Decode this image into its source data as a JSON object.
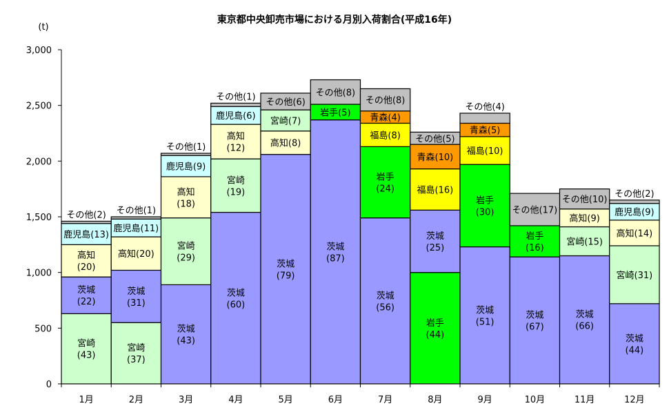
{
  "chart_data": {
    "type": "bar",
    "stacked": true,
    "title": "東京都中央卸売市場における月別入荷割合(平成16年)",
    "unit_label": "(t)",
    "ylim": [
      0,
      3000
    ],
    "yticks": [
      0,
      500,
      1000,
      1500,
      2000,
      2500,
      3000
    ],
    "ytick_labels": [
      "0",
      "500",
      "1,000",
      "1,500",
      "2,000",
      "2,500",
      "3,000"
    ],
    "grid": false,
    "categories": [
      "1月",
      "2月",
      "3月",
      "4月",
      "5月",
      "6月",
      "7月",
      "8月",
      "9月",
      "10月",
      "11月",
      "12月"
    ],
    "colors": {
      "宮崎": "#ccffcc",
      "茨城": "#9999ff",
      "高知": "#ffffcc",
      "鹿児島": "#ccffff",
      "岩手": "#00ff00",
      "福島": "#ffff00",
      "青森": "#ff9900",
      "その他": "#c0c0c0"
    },
    "bars": [
      {
        "month": "1月",
        "segments": [
          {
            "name": "宮崎",
            "value": 630,
            "label": "宮崎\n(43)"
          },
          {
            "name": "茨城",
            "value": 330,
            "label": "茨城\n(22)"
          },
          {
            "name": "高知",
            "value": 290,
            "label": "高知\n(20)"
          },
          {
            "name": "鹿児島",
            "value": 190,
            "label": "鹿児島(13)"
          },
          {
            "name": "その他",
            "value": 20,
            "label": "その他(2)",
            "label_outside": true
          }
        ]
      },
      {
        "month": "2月",
        "segments": [
          {
            "name": "宮崎",
            "value": 550,
            "label": "宮崎\n(37)"
          },
          {
            "name": "茨城",
            "value": 470,
            "label": "茨城\n(31)"
          },
          {
            "name": "高知",
            "value": 300,
            "label": "高知(20)"
          },
          {
            "name": "鹿児島",
            "value": 160,
            "label": "鹿児島(11)"
          },
          {
            "name": "その他",
            "value": 20,
            "label": "その他(1)",
            "label_outside": true
          }
        ]
      },
      {
        "month": "3月",
        "segments": [
          {
            "name": "茨城",
            "value": 890,
            "label": "茨城\n(43)"
          },
          {
            "name": "宮崎",
            "value": 600,
            "label": "宮崎\n(29)"
          },
          {
            "name": "高知",
            "value": 370,
            "label": "高知\n(18)"
          },
          {
            "name": "鹿児島",
            "value": 190,
            "label": "鹿児島(9)"
          },
          {
            "name": "その他",
            "value": 20,
            "label": "その他(1)",
            "label_outside": true
          }
        ]
      },
      {
        "month": "4月",
        "segments": [
          {
            "name": "茨城",
            "value": 1540,
            "label": "茨城\n(60)"
          },
          {
            "name": "宮崎",
            "value": 480,
            "label": "宮崎\n(19)"
          },
          {
            "name": "高知",
            "value": 310,
            "label": "高知\n(12)"
          },
          {
            "name": "鹿児島",
            "value": 160,
            "label": "鹿児島(6)"
          },
          {
            "name": "その他",
            "value": 30,
            "label": "その他(1)",
            "label_outside": true
          }
        ]
      },
      {
        "month": "5月",
        "segments": [
          {
            "name": "茨城",
            "value": 2060,
            "label": "茨城\n(79)"
          },
          {
            "name": "高知",
            "value": 210,
            "label": "高知(8)"
          },
          {
            "name": "宮崎",
            "value": 190,
            "label": "宮崎(7)"
          },
          {
            "name": "その他",
            "value": 150,
            "label": "その他(6)"
          }
        ]
      },
      {
        "month": "6月",
        "segments": [
          {
            "name": "茨城",
            "value": 2370,
            "label": "茨城\n(87)"
          },
          {
            "name": "岩手",
            "value": 140,
            "label": "岩手(5)"
          },
          {
            "name": "その他",
            "value": 220,
            "label": "その他(8)"
          }
        ]
      },
      {
        "month": "7月",
        "segments": [
          {
            "name": "茨城",
            "value": 1490,
            "label": "茨城\n(56)"
          },
          {
            "name": "岩手",
            "value": 640,
            "label": "岩手\n(24)"
          },
          {
            "name": "福島",
            "value": 210,
            "label": "福島(8)"
          },
          {
            "name": "青森",
            "value": 110,
            "label": "青森(4)"
          },
          {
            "name": "その他",
            "value": 200,
            "label": "その他(8)"
          }
        ]
      },
      {
        "month": "8月",
        "segments": [
          {
            "name": "岩手",
            "value": 1000,
            "label": "岩手\n(44)"
          },
          {
            "name": "茨城",
            "value": 560,
            "label": "茨城\n(25)"
          },
          {
            "name": "福島",
            "value": 370,
            "label": "福島(16)"
          },
          {
            "name": "青森",
            "value": 220,
            "label": "青森(10)"
          },
          {
            "name": "その他",
            "value": 110,
            "label": "その他(5)"
          }
        ]
      },
      {
        "month": "9月",
        "segments": [
          {
            "name": "茨城",
            "value": 1230,
            "label": "茨城\n(51)"
          },
          {
            "name": "岩手",
            "value": 740,
            "label": "岩手\n(30)"
          },
          {
            "name": "福島",
            "value": 250,
            "label": "福島(10)"
          },
          {
            "name": "青森",
            "value": 120,
            "label": "青森(5)"
          },
          {
            "name": "その他",
            "value": 90,
            "label": "その他(4)",
            "label_outside": true
          }
        ]
      },
      {
        "month": "10月",
        "segments": [
          {
            "name": "茨城",
            "value": 1140,
            "label": "茨城\n(67)"
          },
          {
            "name": "岩手",
            "value": 280,
            "label": "岩手\n(16)"
          },
          {
            "name": "その他",
            "value": 290,
            "label": "その他(17)"
          }
        ]
      },
      {
        "month": "11月",
        "segments": [
          {
            "name": "茨城",
            "value": 1150,
            "label": "茨城\n(66)"
          },
          {
            "name": "宮崎",
            "value": 260,
            "label": "宮崎(15)"
          },
          {
            "name": "高知",
            "value": 160,
            "label": "高知(9)"
          },
          {
            "name": "その他",
            "value": 180,
            "label": "その他(10)"
          }
        ]
      },
      {
        "month": "12月",
        "segments": [
          {
            "name": "茨城",
            "value": 720,
            "label": "茨城\n(44)"
          },
          {
            "name": "宮崎",
            "value": 520,
            "label": "宮崎(31)"
          },
          {
            "name": "高知",
            "value": 230,
            "label": "高知(14)"
          },
          {
            "name": "鹿児島",
            "value": 150,
            "label": "鹿児島(9)"
          },
          {
            "name": "その他",
            "value": 30,
            "label": "その他(2)",
            "label_outside": true
          }
        ]
      }
    ]
  }
}
